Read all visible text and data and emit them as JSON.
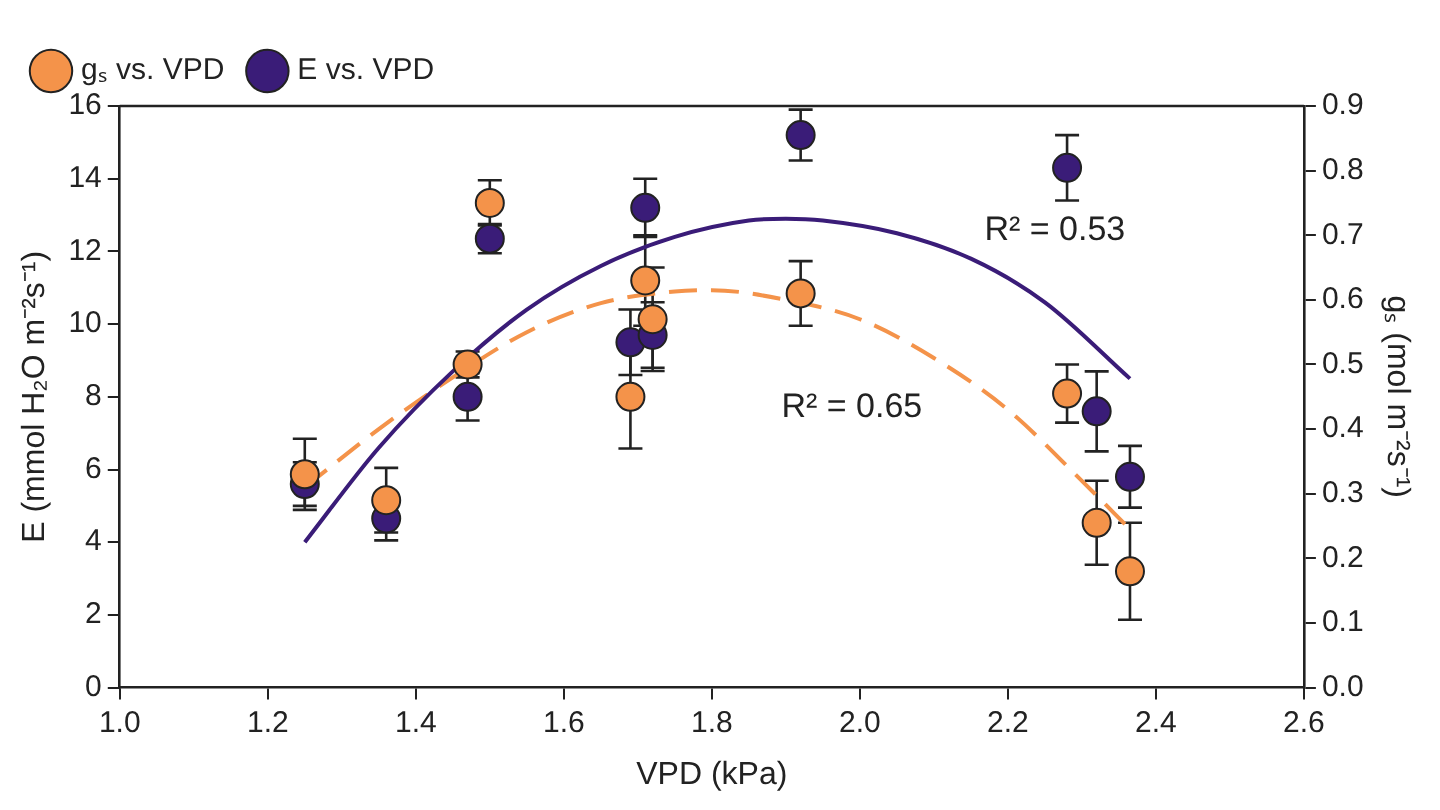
{
  "chart_data": {
    "type": "scatter",
    "xlabel": "VPD (kPa)",
    "ylabel": "E (mmol H₂O m⁻²s⁻¹)",
    "y2label": "gₛ (mol m⁻²s⁻¹)",
    "xlim": [
      1.0,
      2.6
    ],
    "xticks": [
      {
        "value": 1.0,
        "label": "1.0"
      },
      {
        "value": 1.2,
        "label": "1.2"
      },
      {
        "value": 1.4,
        "label": "1.4"
      },
      {
        "value": 1.6,
        "label": "1.6"
      },
      {
        "value": 1.8,
        "label": "1.8"
      },
      {
        "value": 2.0,
        "label": "2.0"
      },
      {
        "value": 2.2,
        "label": "2.2"
      },
      {
        "value": 2.4,
        "label": "2.4"
      },
      {
        "value": 2.6,
        "label": "2.6"
      }
    ],
    "ylim": [
      0,
      16
    ],
    "yticks": [
      0,
      2,
      4,
      6,
      8,
      10,
      12,
      14,
      16
    ],
    "y2lim": [
      0,
      0.9
    ],
    "y2ticks": [
      {
        "value": 0,
        "label": "0.0"
      },
      0.1,
      0.2,
      0.3,
      0.4,
      0.5,
      0.6,
      0.7,
      0.8,
      0.9
    ],
    "grid": false,
    "legend": "top left",
    "series": [
      {
        "name": "E vs. VPD",
        "marker": "circle",
        "color": "#3a1c78",
        "x": [
          1.25,
          1.36,
          1.47,
          1.5,
          1.69,
          1.71,
          1.72,
          1.92,
          2.28,
          2.32,
          2.365
        ],
        "values": [
          5.6,
          4.65,
          8.0,
          12.35,
          9.5,
          13.2,
          9.7,
          15.2,
          14.3,
          7.6,
          5.8
        ],
        "errors": [
          0.6,
          0.6,
          0.65,
          0.4,
          0.9,
          0.8,
          0.9,
          0.7,
          0.9,
          1.1,
          0.85
        ]
      },
      {
        "name": "gₛ vs. VPD",
        "marker": "circle",
        "axis": "y2",
        "color": "#f4934a",
        "x": [
          1.25,
          1.36,
          1.47,
          1.5,
          1.69,
          1.71,
          1.72,
          1.92,
          2.28,
          2.32,
          2.365
        ],
        "values": [
          0.33,
          0.29,
          0.5,
          0.75,
          0.45,
          0.63,
          0.57,
          0.61,
          0.455,
          0.255,
          0.18
        ],
        "errors": [
          0.055,
          0.05,
          0.02,
          0.035,
          0.08,
          0.07,
          0.08,
          0.05,
          0.045,
          0.065,
          0.075
        ]
      },
      {
        "type": "line",
        "color": "#3a1c78",
        "line_style": "solid",
        "x": [
          1.25,
          1.35,
          1.45,
          1.55,
          1.65,
          1.75,
          1.85,
          1.9,
          1.95,
          2.05,
          2.15,
          2.25,
          2.365
        ],
        "values": [
          4.0,
          6.6,
          8.7,
          10.4,
          11.6,
          12.4,
          12.85,
          12.9,
          12.85,
          12.5,
          11.8,
          10.6,
          8.5
        ]
      },
      {
        "type": "line",
        "axis": "y2",
        "color": "#f4934a",
        "line_style": "dashed",
        "x": [
          1.25,
          1.35,
          1.45,
          1.55,
          1.65,
          1.75,
          1.8,
          1.9,
          2.0,
          2.1,
          2.2,
          2.3,
          2.365
        ],
        "values": [
          0.31,
          0.4,
          0.48,
          0.55,
          0.595,
          0.613,
          0.615,
          0.6,
          0.57,
          0.51,
          0.43,
          0.32,
          0.245
        ]
      }
    ],
    "annotations": [
      "R² = 0.53",
      "R² = 0.65"
    ]
  }
}
